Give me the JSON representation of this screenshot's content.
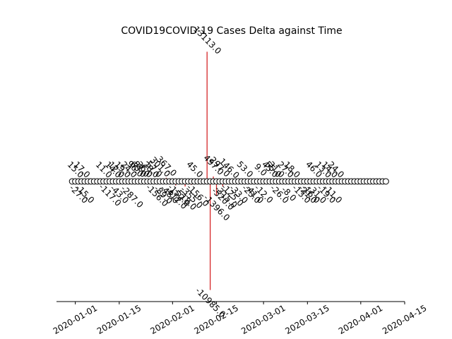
{
  "chart_data": {
    "type": "stem",
    "title": "COVID19COVID-19 Cases Delta against Time",
    "x": [
      "2019-12-31",
      "2020-01-01",
      "2020-01-02",
      "2020-01-03",
      "2020-01-04",
      "2020-01-05",
      "2020-01-06",
      "2020-01-07",
      "2020-01-08",
      "2020-01-09",
      "2020-01-10",
      "2020-01-11",
      "2020-01-12",
      "2020-01-13",
      "2020-01-14",
      "2020-01-15",
      "2020-01-16",
      "2020-01-17",
      "2020-01-18",
      "2020-01-19",
      "2020-01-20",
      "2020-01-21",
      "2020-01-22",
      "2020-01-23",
      "2020-01-24",
      "2020-01-25",
      "2020-01-26",
      "2020-01-27",
      "2020-01-28",
      "2020-01-29",
      "2020-01-30",
      "2020-01-31",
      "2020-02-01",
      "2020-02-02",
      "2020-02-03",
      "2020-02-04",
      "2020-02-05",
      "2020-02-06",
      "2020-02-07",
      "2020-02-08",
      "2020-02-09",
      "2020-02-10",
      "2020-02-11",
      "2020-02-12",
      "2020-02-13",
      "2020-02-14",
      "2020-02-15",
      "2020-02-16",
      "2020-02-17",
      "2020-02-18",
      "2020-02-19",
      "2020-02-20",
      "2020-02-21",
      "2020-02-22",
      "2020-02-23",
      "2020-02-24",
      "2020-02-25",
      "2020-02-26",
      "2020-02-27",
      "2020-02-28",
      "2020-02-29",
      "2020-03-01",
      "2020-03-02",
      "2020-03-03",
      "2020-03-04",
      "2020-03-05",
      "2020-03-06",
      "2020-03-07",
      "2020-03-08",
      "2020-03-09",
      "2020-03-10",
      "2020-03-11",
      "2020-03-12",
      "2020-03-13",
      "2020-03-14",
      "2020-03-15",
      "2020-03-16",
      "2020-03-17",
      "2020-03-18",
      "2020-03-19",
      "2020-03-20",
      "2020-03-21",
      "2020-03-22",
      "2020-03-23",
      "2020-03-24",
      "2020-03-25",
      "2020-03-26",
      "2020-03-27",
      "2020-03-28",
      "2020-03-29",
      "2020-03-30",
      "2020-03-31",
      "2020-04-01",
      "2020-04-02",
      "2020-04-03",
      "2020-04-04",
      "2020-04-05",
      "2020-04-06",
      "2020-04-07",
      "2020-04-08",
      "2020-04-09"
    ],
    "values": [
      0,
      15,
      -27,
      17,
      -15,
      0,
      0,
      0,
      0,
      0,
      11,
      0,
      -117,
      14,
      12,
      -43,
      19,
      0,
      24,
      -287,
      96,
      63,
      81,
      36,
      0,
      28,
      57,
      -156,
      301,
      -89,
      367,
      -48,
      0,
      -412,
      -152,
      0,
      -518,
      0,
      -355,
      45,
      -156,
      0,
      0,
      13113,
      -10985,
      497,
      -1396,
      297,
      -520,
      -315,
      146,
      -125,
      0,
      -33,
      0,
      53,
      0,
      -23,
      -41,
      0,
      9,
      -12,
      0,
      45,
      55,
      31,
      -26,
      0,
      27,
      -8,
      18,
      0,
      0,
      -13,
      0,
      -21,
      -16,
      46,
      -31,
      0,
      13,
      -19,
      14,
      -11,
      24,
      0,
      0,
      0,
      0,
      0,
      0,
      0,
      0,
      0,
      0,
      0,
      0,
      0,
      0,
      0,
      0
    ],
    "value_labels": [
      null,
      "15.0",
      "-27.0",
      "17.0",
      "-15.0",
      null,
      null,
      null,
      null,
      null,
      "11.0",
      null,
      "-117.0",
      "14.0",
      "12.0",
      "-43.0",
      "19.0",
      null,
      "24.0",
      "-287.0",
      "96.0",
      "63.0",
      "81.0",
      "36.0",
      null,
      "28.0",
      "57.0",
      "-156.0",
      "301.0",
      "-89.0",
      "367.0",
      "-48.0",
      null,
      "-412.0",
      "-152.0",
      null,
      "-518.0",
      null,
      "-355.0",
      "45.0",
      "-156.0",
      null,
      null,
      "13113.0",
      "-10985.0",
      "497.0",
      "-1396.0",
      "297.0",
      "-520.0",
      "-315.0",
      "146.0",
      "-125.0",
      null,
      "-33.0",
      null,
      "53.0",
      null,
      "-23.0",
      "-41.0",
      null,
      "9.0",
      "-12.0",
      null,
      "45.0",
      "55.0",
      "31.0",
      "-26.0",
      null,
      "27.0",
      "-8.0",
      "18.0",
      null,
      null,
      "-13.0",
      null,
      "-21.0",
      "-16.0",
      "46.0",
      "-31.0",
      null,
      "13.0",
      "-19.0",
      "14.0",
      "-11.0",
      "24.0",
      null,
      null,
      null,
      null,
      null,
      null,
      null,
      null,
      null,
      null,
      null,
      null,
      null,
      null,
      null,
      null
    ],
    "color": "#d62728",
    "xlim": [
      "2019-12-26",
      "2020-04-15"
    ],
    "xticks": [
      "2020-01-01",
      "2020-01-15",
      "2020-02-01",
      "2020-02-15",
      "2020-03-01",
      "2020-03-15",
      "2020-04-01",
      "2020-04-15"
    ],
    "ylim": [
      -12150,
      14200
    ]
  }
}
